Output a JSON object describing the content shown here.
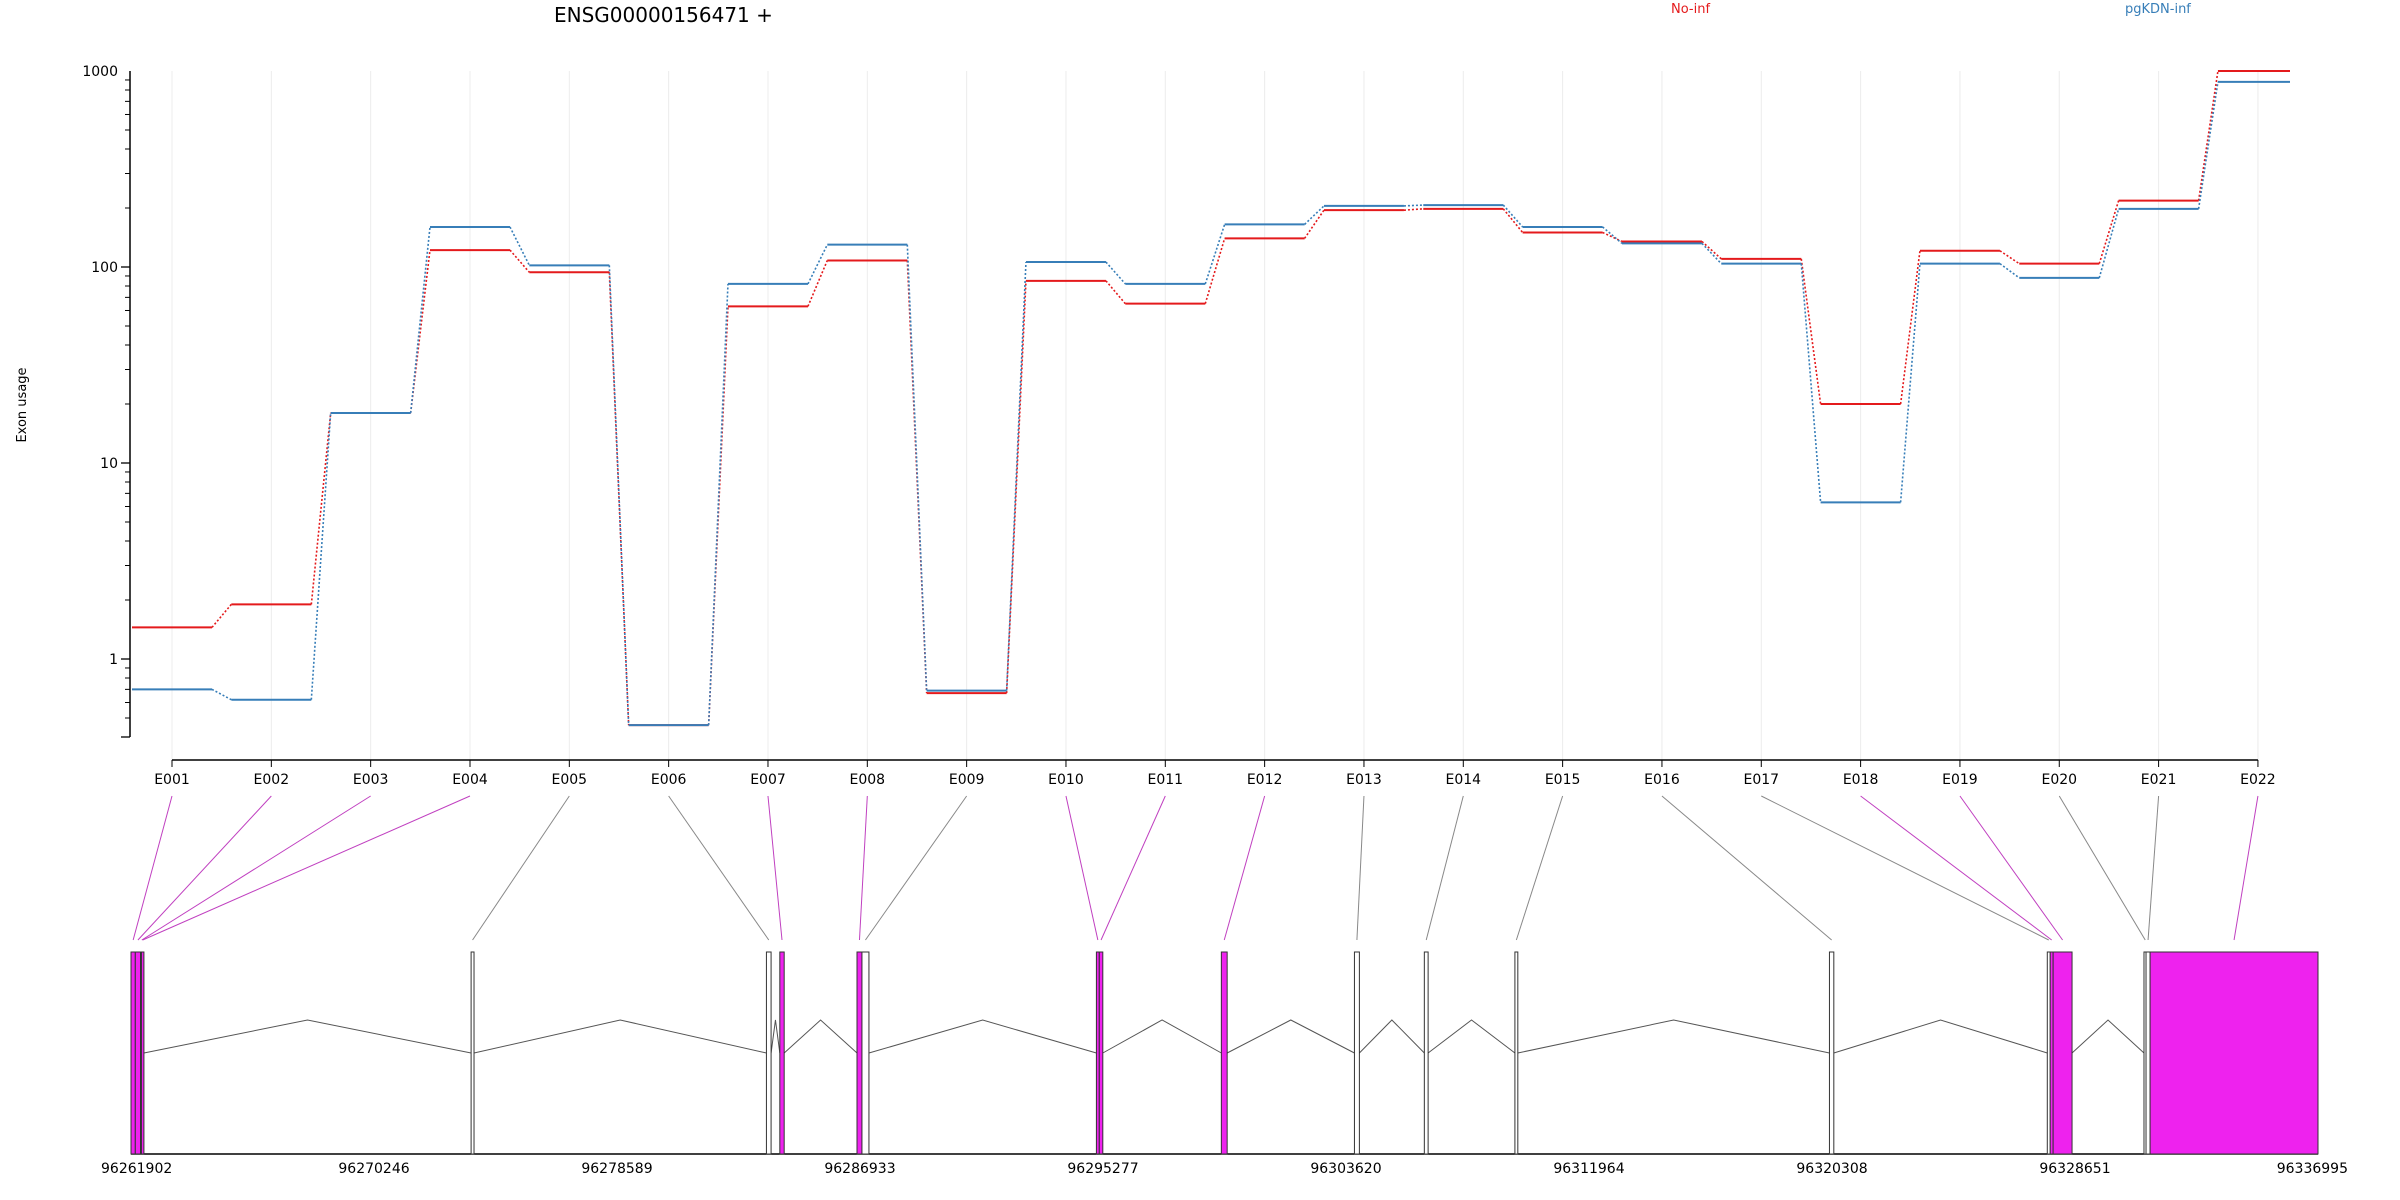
{
  "header": {
    "title": "ENSG00000156471 +",
    "legend": [
      {
        "label": "No-inf",
        "color": "#e41a1c"
      },
      {
        "label": "pgKDN-inf",
        "color": "#377eb8"
      }
    ]
  },
  "chart_data": {
    "type": "line",
    "scale": "log",
    "ylabel": "Exon usage",
    "xlabel": "",
    "ylim": [
      0.4,
      1000
    ],
    "yticks": [
      1,
      10,
      100,
      1000
    ],
    "grid": "vertical",
    "legend_position": "top",
    "categories": [
      "E001",
      "E002",
      "E003",
      "E004",
      "E005",
      "E006",
      "E007",
      "E008",
      "E009",
      "E010",
      "E011",
      "E012",
      "E013",
      "E014",
      "E015",
      "E016",
      "E017",
      "E018",
      "E019",
      "E020",
      "E021",
      "E022"
    ],
    "series": [
      {
        "name": "No-inf",
        "color": "#e41a1c",
        "values": [
          1.45,
          1.9,
          18,
          122,
          94,
          0.46,
          63,
          108,
          0.67,
          85,
          65,
          140,
          195,
          198,
          150,
          135,
          110,
          20,
          121,
          104,
          218,
          1000
        ]
      },
      {
        "name": "pgKDN-inf",
        "color": "#377eb8",
        "values": [
          0.7,
          0.62,
          18,
          160,
          102,
          0.46,
          82,
          130,
          0.69,
          106,
          82,
          165,
          205,
          207,
          160,
          132,
          104,
          6.3,
          104,
          88,
          198,
          880
        ]
      }
    ],
    "gene_model": {
      "genomic_ticks": [
        96261902,
        96270246,
        96278589,
        96286933,
        96295277,
        96303620,
        96311964,
        96320308,
        96328651,
        96336995
      ],
      "highlight_color": "#ee22ee",
      "exons": [
        {
          "id": "E001",
          "start": 96261902,
          "end": 96262050,
          "highlight": true
        },
        {
          "id": "E002",
          "start": 96262050,
          "end": 96262230,
          "highlight": true
        },
        {
          "id": "E003",
          "start": 96262230,
          "end": 96262260,
          "highlight": true
        },
        {
          "id": "E004",
          "start": 96262260,
          "end": 96262300,
          "highlight": true
        },
        {
          "id": "E005",
          "start": 96273580,
          "end": 96273680,
          "highlight": false
        },
        {
          "id": "E006",
          "start": 96283720,
          "end": 96283880,
          "highlight": false
        },
        {
          "id": "E007",
          "start": 96284180,
          "end": 96284330,
          "highlight": true
        },
        {
          "id": "E008",
          "start": 96286830,
          "end": 96287000,
          "highlight": true
        },
        {
          "id": "E009",
          "start": 96287000,
          "end": 96287240,
          "highlight": false
        },
        {
          "id": "E010",
          "start": 96295050,
          "end": 96295150,
          "highlight": true
        },
        {
          "id": "E011",
          "start": 96295150,
          "end": 96295270,
          "highlight": true
        },
        {
          "id": "E012",
          "start": 96299340,
          "end": 96299540,
          "highlight": true
        },
        {
          "id": "E013",
          "start": 96303910,
          "end": 96304080,
          "highlight": false
        },
        {
          "id": "E014",
          "start": 96306310,
          "end": 96306440,
          "highlight": false
        },
        {
          "id": "E015",
          "start": 96309420,
          "end": 96309520,
          "highlight": false
        },
        {
          "id": "E016",
          "start": 96320220,
          "end": 96320370,
          "highlight": false
        },
        {
          "id": "E017",
          "start": 96327700,
          "end": 96327800,
          "highlight": false
        },
        {
          "id": "E018",
          "start": 96327800,
          "end": 96327900,
          "highlight": true
        },
        {
          "id": "E019",
          "start": 96327900,
          "end": 96328550,
          "highlight": true
        },
        {
          "id": "E020",
          "start": 96331020,
          "end": 96331090,
          "highlight": false
        },
        {
          "id": "E021",
          "start": 96331090,
          "end": 96331230,
          "highlight": false
        },
        {
          "id": "E022",
          "start": 96331230,
          "end": 96336995,
          "highlight": true
        }
      ]
    }
  }
}
